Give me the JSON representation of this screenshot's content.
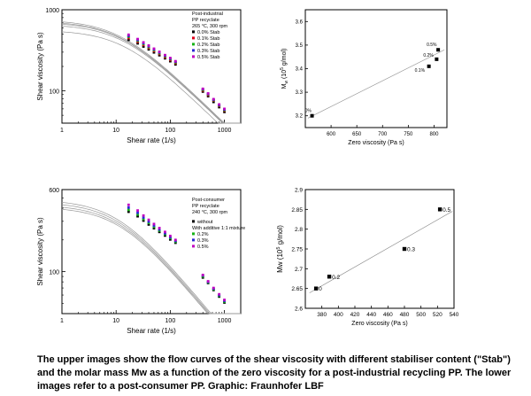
{
  "caption": "The upper images show the flow curves of the shear viscosity with different stabiliser content (\"Stab\") and the molar mass Mw as a function of the zero viscosity for a post-industrial recycling PP. The lower images refer to a post-consumer PP. Graphic: Fraunhofer LBF",
  "chart_data": [
    {
      "type": "scatter",
      "title": "",
      "xlabel": "Shear rate (1/s)",
      "ylabel": "Shear viscosity (Pa s)",
      "x_scale": "log",
      "y_scale": "log",
      "xlim": [
        1,
        2000
      ],
      "ylim": [
        40,
        1000
      ],
      "x_ticks": [
        1,
        10,
        100,
        1000
      ],
      "y_ticks": [
        100,
        1000
      ],
      "legend_title": [
        "Post-industrial",
        "PP recyclate",
        "265 °C, 300 rpm"
      ],
      "legend_position": "top-right",
      "series": [
        {
          "name": "0.0% Stab",
          "color": "#000000",
          "x": [
            17,
            25,
            32,
            40,
            50,
            63,
            80,
            100,
            125,
            400,
            500,
            630,
            800,
            1000
          ],
          "y": [
            425,
            385,
            352,
            325,
            298,
            275,
            252,
            232,
            212,
            98,
            86,
            73,
            63,
            55
          ]
        },
        {
          "name": "0.1% Stab",
          "color": "#e0001a",
          "x": [
            17,
            25,
            32,
            40,
            50,
            63,
            80,
            100,
            125,
            400,
            500,
            630,
            800,
            1000
          ],
          "y": [
            448,
            402,
            368,
            338,
            310,
            285,
            260,
            240,
            220,
            101,
            89,
            76,
            65,
            57
          ]
        },
        {
          "name": "0.2% Stab",
          "color": "#16b316",
          "x": [
            17,
            25,
            32,
            40,
            50,
            63,
            80,
            100,
            125,
            400,
            500,
            630,
            800,
            1000
          ],
          "y": [
            465,
            415,
            380,
            348,
            318,
            292,
            267,
            246,
            225,
            103,
            91,
            77,
            66,
            58
          ]
        },
        {
          "name": "0.3% Stab",
          "color": "#2a2ad6",
          "x": [
            17,
            25,
            32,
            40,
            50,
            63,
            80,
            100,
            125,
            400,
            500,
            630,
            800,
            1000
          ],
          "y": [
            478,
            425,
            388,
            356,
            325,
            298,
            272,
            250,
            229,
            105,
            92,
            78,
            67,
            59
          ]
        },
        {
          "name": "0.5% Stab",
          "color": "#c000c0",
          "x": [
            17,
            25,
            32,
            40,
            50,
            63,
            80,
            100,
            125,
            400,
            500,
            630,
            800,
            1000
          ],
          "y": [
            492,
            435,
            396,
            362,
            331,
            303,
            276,
            254,
            232,
            106,
            93,
            79,
            68,
            60
          ]
        }
      ],
      "fit_curves": {
        "eta0": [
          560,
          660,
          700,
          720,
          750
        ],
        "tau": [
          0.075,
          0.08,
          0.085,
          0.088,
          0.09
        ],
        "exponent": [
          0.65,
          0.65,
          0.65,
          0.65,
          0.65
        ],
        "color": "#999999"
      }
    },
    {
      "type": "scatter",
      "title": "",
      "xlabel": "Zero viscosity (Pa s)",
      "ylabel": "Mw (10⁵ g/mol)",
      "ylabel_main": "M",
      "ylabel_sub": "w",
      "ylabel_rest": " (10",
      "ylabel_sup": "5",
      "ylabel_end": " g/mol)",
      "xlim": [
        550,
        825
      ],
      "ylim": [
        3.15,
        3.65
      ],
      "x_ticks": [
        600,
        650,
        700,
        750,
        800
      ],
      "y_ticks": [
        3.2,
        3.3,
        3.4,
        3.5,
        3.6
      ],
      "points": [
        {
          "label": "0%",
          "x": 563,
          "y": 3.2
        },
        {
          "label": "0.1%",
          "x": 790,
          "y": 3.41
        },
        {
          "label": "0.2%",
          "x": 805,
          "y": 3.44
        },
        {
          "label": "0.5%",
          "x": 808,
          "y": 3.48
        }
      ],
      "trendline": {
        "x": [
          555,
          820
        ],
        "y": [
          3.19,
          3.48
        ]
      }
    },
    {
      "type": "scatter",
      "title": "",
      "xlabel": "Shear rate (1/s)",
      "ylabel": "Shear viscosity (Pa s)",
      "x_scale": "log",
      "y_scale": "log",
      "xlim": [
        1,
        2000
      ],
      "ylim": [
        40,
        600
      ],
      "x_ticks": [
        1,
        10,
        100,
        1000
      ],
      "y_ticks": [
        100,
        600
      ],
      "legend_title": [
        "Post-consumer",
        "PP recyclate",
        "240 °C, 300 rpm"
      ],
      "legend_heading_2": "With additive 1:1 mixture",
      "legend_position": "top-right",
      "series": [
        {
          "name": "without",
          "color": "#000000",
          "x": [
            17,
            25,
            32,
            40,
            50,
            63,
            80,
            100,
            125,
            400,
            500,
            630,
            800,
            1000
          ],
          "y": [
            370,
            335,
            305,
            280,
            258,
            238,
            220,
            202,
            188,
            88,
            78,
            67,
            58,
            51
          ]
        },
        {
          "name": "0.2%",
          "color": "#16b316",
          "x": [
            17,
            25,
            32,
            40,
            50,
            63,
            80,
            100,
            125,
            400,
            500,
            630,
            800,
            1000
          ],
          "y": [
            385,
            348,
            315,
            290,
            266,
            245,
            226,
            208,
            192,
            90,
            79,
            68,
            59,
            52
          ]
        },
        {
          "name": "0.3%",
          "color": "#2a2ad6",
          "x": [
            17,
            25,
            32,
            40,
            50,
            63,
            80,
            100,
            125,
            400,
            500,
            630,
            800,
            1000
          ],
          "y": [
            405,
            362,
            326,
            298,
            273,
            251,
            231,
            212,
            196,
            92,
            80,
            69,
            60,
            53
          ]
        },
        {
          "name": "0.5%",
          "color": "#c000c0",
          "x": [
            17,
            25,
            32,
            40,
            50,
            63,
            80,
            100,
            125,
            400,
            500,
            630,
            800,
            1000
          ],
          "y": [
            430,
            380,
            340,
            310,
            283,
            259,
            238,
            218,
            200,
            93,
            81,
            70,
            61,
            54
          ]
        }
      ],
      "fit_curves": {
        "eta0": [
          410,
          430,
          455,
          480
        ],
        "tau": [
          0.085,
          0.088,
          0.092,
          0.095
        ],
        "exponent": [
          0.62,
          0.62,
          0.62,
          0.62
        ],
        "color": "#999999"
      }
    },
    {
      "type": "scatter",
      "title": "",
      "xlabel": "Zero viscosity (Pa s)",
      "ylabel": "Mw (10⁵ g/mol)",
      "ylabel_main": "Mw (10",
      "ylabel_sup": "5",
      "ylabel_end": " g/mol)",
      "xlim": [
        360,
        540
      ],
      "ylim": [
        2.6,
        2.9
      ],
      "x_ticks": [
        380,
        400,
        420,
        440,
        460,
        480,
        500,
        520,
        540
      ],
      "y_ticks": [
        2.6,
        2.65,
        2.7,
        2.75,
        2.8,
        2.85,
        2.9
      ],
      "points": [
        {
          "label": "0",
          "x": 373,
          "y": 2.65
        },
        {
          "label": "0.2",
          "x": 389,
          "y": 2.68
        },
        {
          "label": "0.3",
          "x": 480,
          "y": 2.75
        },
        {
          "label": "0.5",
          "x": 523,
          "y": 2.85
        }
      ],
      "trendline": {
        "x": [
          365,
          538
        ],
        "y": [
          2.639,
          2.845
        ]
      }
    }
  ]
}
